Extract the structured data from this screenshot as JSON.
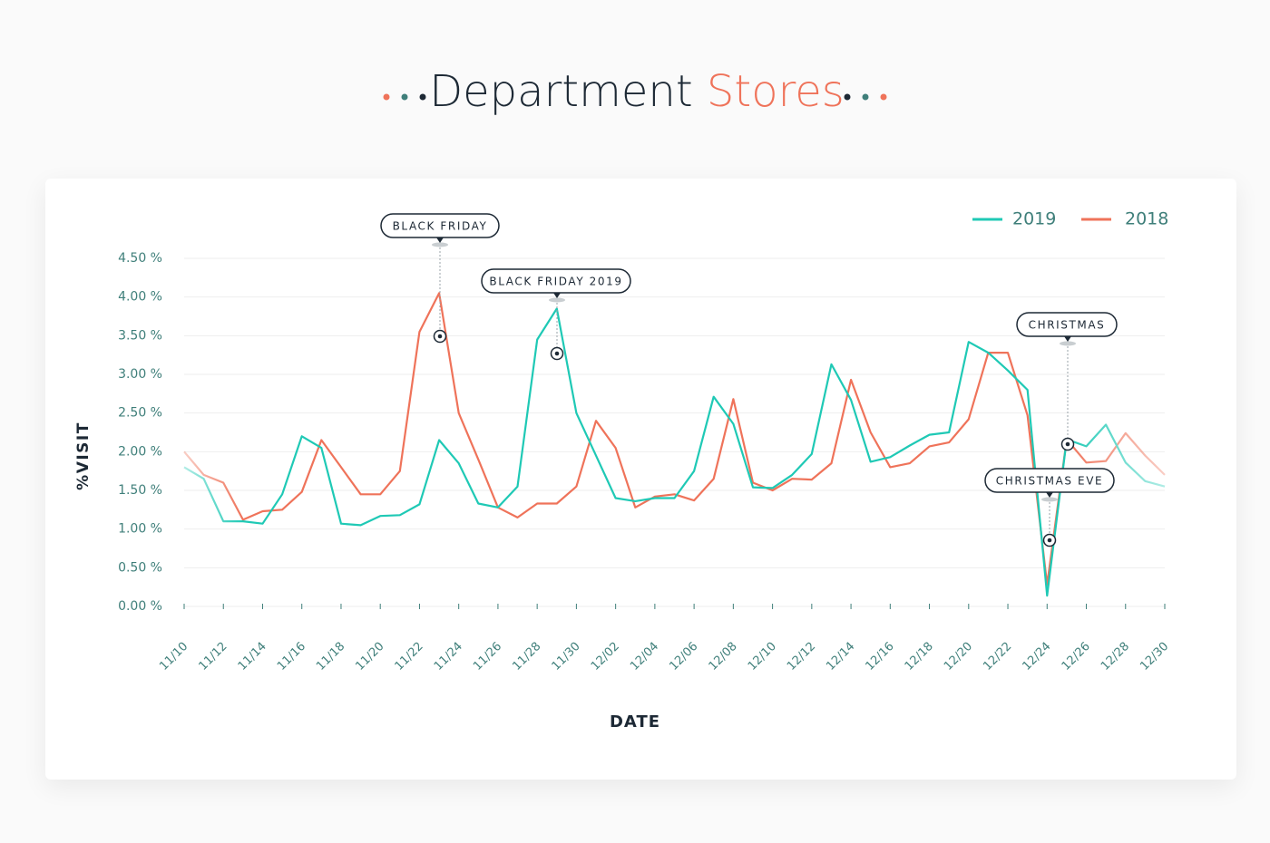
{
  "chart_data": {
    "type": "line",
    "title": "Department",
    "title_highlight": "Stores",
    "x_label": "DATE",
    "y_label": "%VISIT",
    "categories": [
      "11/10",
      null,
      "11/12",
      null,
      "11/14",
      null,
      "11/16",
      null,
      "11/18",
      null,
      "11/20",
      null,
      "11/22",
      null,
      "11/24",
      null,
      "11/26",
      null,
      "11/28",
      null,
      "11/30",
      null,
      "12/02",
      null,
      "12/04",
      null,
      "12/06",
      null,
      "12/08",
      null,
      "12/10",
      null,
      "12/12",
      null,
      "12/14",
      null,
      "12/16",
      null,
      "12/18",
      null,
      "12/20",
      null,
      "12/22",
      null,
      "12/24",
      null,
      "12/26",
      null,
      "12/28",
      null,
      "12/30"
    ],
    "series": [
      {
        "name": "2019",
        "color": "#1fc9b5",
        "values": [
          1.8,
          1.65,
          1.1,
          1.1,
          1.07,
          1.45,
          2.2,
          2.05,
          1.07,
          1.05,
          1.17,
          1.18,
          1.32,
          2.15,
          1.85,
          1.33,
          1.28,
          1.55,
          3.45,
          3.85,
          2.5,
          1.95,
          1.4,
          1.36,
          1.4,
          1.4,
          1.75,
          2.71,
          2.36,
          1.54,
          1.53,
          1.7,
          1.97,
          3.13,
          2.67,
          1.87,
          1.93,
          2.08,
          2.22,
          2.25,
          3.42,
          3.28,
          3.05,
          2.8,
          0.14,
          2.16,
          2.07,
          2.35,
          1.86,
          1.62,
          1.55
        ]
      },
      {
        "name": "2018",
        "color": "#ef735a",
        "values": [
          2.0,
          1.7,
          1.6,
          1.12,
          1.23,
          1.25,
          1.48,
          2.15,
          1.8,
          1.45,
          1.45,
          1.75,
          3.55,
          4.05,
          2.5,
          1.9,
          1.28,
          1.15,
          1.33,
          1.33,
          1.55,
          2.4,
          2.05,
          1.28,
          1.42,
          1.45,
          1.37,
          1.65,
          2.68,
          1.6,
          1.5,
          1.65,
          1.64,
          1.85,
          2.93,
          2.25,
          1.8,
          1.85,
          2.07,
          2.12,
          2.42,
          3.28,
          3.28,
          2.47,
          0.28,
          2.16,
          1.86,
          1.88,
          2.24,
          1.95,
          1.7
        ]
      }
    ],
    "ylim": [
      0,
      4.5
    ],
    "yticks": [
      {
        "value": 0,
        "label": "0.00 %"
      },
      {
        "value": 0.5,
        "label": "0.50 %"
      },
      {
        "value": 1,
        "label": "1.00 %"
      },
      {
        "value": 1.5,
        "label": "1.50 %"
      },
      {
        "value": 2,
        "label": "2.00 %"
      },
      {
        "value": 2.5,
        "label": "2.50 %"
      },
      {
        "value": 3,
        "label": "3.00 %"
      },
      {
        "value": 3.5,
        "label": "3.50 %"
      },
      {
        "value": 4,
        "label": "4.00 %"
      },
      {
        "value": 4.5,
        "label": "4.50 %"
      }
    ],
    "grid": true,
    "legend": "top-right",
    "annotations": [
      {
        "text": "BLACK FRIDAY"
      },
      {
        "text": "BLACK FRIDAY 2019"
      },
      {
        "text": "CHRISTMAS"
      },
      {
        "text": "CHRISTMAS EVE"
      }
    ]
  }
}
